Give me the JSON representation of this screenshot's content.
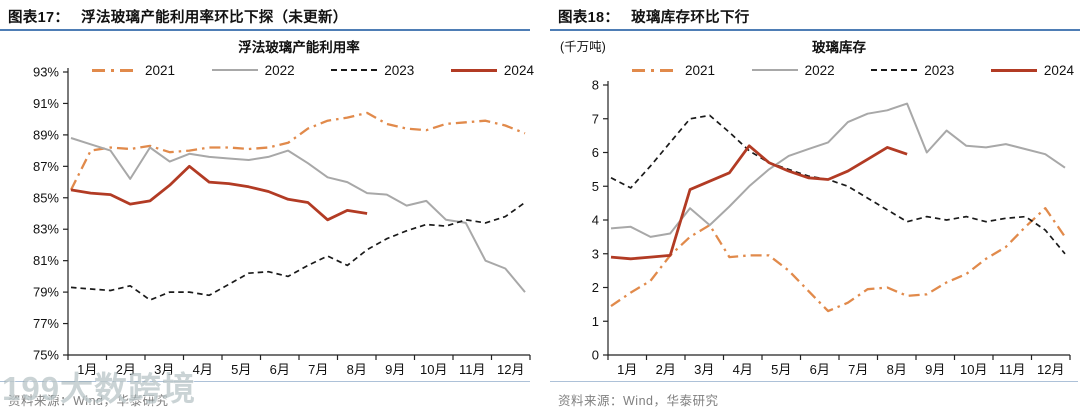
{
  "colors": {
    "y2021": "#E18A4B",
    "y2022": "#A8A8A8",
    "y2023": "#1A1A1A",
    "y2024": "#B23B24",
    "header_rule": "#4E7DB5",
    "footer_rule": "#ADC1D8",
    "source_text": "#808080",
    "axis": "#222222"
  },
  "figures": [
    {
      "label": "图表17：",
      "title": "浮法玻璃产能利用率环比下探（未更新）",
      "subtitle": "浮法玻璃产能利用率",
      "unit": "",
      "source": "资料来源：Wind，华泰研究"
    },
    {
      "label": "图表18：",
      "title": "玻璃库存环比下行",
      "subtitle": "玻璃库存",
      "unit": "(千万吨)",
      "source": "资料来源：Wind，华泰研究"
    }
  ],
  "watermark": {
    "text": "199大数跨境"
  },
  "chart_data": [
    {
      "type": "line",
      "title": "浮法玻璃产能利用率",
      "x_categories": [
        "1月",
        "2月",
        "3月",
        "4月",
        "5月",
        "6月",
        "7月",
        "8月",
        "9月",
        "10月",
        "11月",
        "12月"
      ],
      "points_per_month": 2,
      "ylim": [
        75,
        93
      ],
      "ytick_step": 2,
      "ytick_suffix": "%",
      "grid": false,
      "legend_position": "top",
      "series": [
        {
          "name": "2021",
          "style": "dashdot",
          "color": "#E18A4B",
          "width": 2.3,
          "values": [
            85.5,
            88.0,
            88.2,
            88.1,
            88.3,
            87.9,
            88.0,
            88.2,
            88.2,
            88.1,
            88.2,
            88.5,
            89.4,
            89.9,
            90.1,
            90.4,
            89.7,
            89.4,
            89.3,
            89.7,
            89.8,
            89.9,
            89.6,
            89.1
          ]
        },
        {
          "name": "2022",
          "style": "solid",
          "color": "#A8A8A8",
          "width": 2.0,
          "values": [
            88.8,
            88.4,
            88.0,
            86.2,
            88.2,
            87.3,
            87.8,
            87.6,
            87.5,
            87.4,
            87.6,
            88.0,
            87.2,
            86.3,
            86.0,
            85.3,
            85.2,
            84.5,
            84.8,
            83.6,
            83.4,
            81.0,
            80.5,
            79.0
          ]
        },
        {
          "name": "2023",
          "style": "dashed",
          "color": "#1A1A1A",
          "width": 1.7,
          "values": [
            79.3,
            79.2,
            79.1,
            79.4,
            78.5,
            79.0,
            79.0,
            78.8,
            79.5,
            80.2,
            80.3,
            80.0,
            80.7,
            81.3,
            80.7,
            81.7,
            82.4,
            82.9,
            83.3,
            83.2,
            83.6,
            83.4,
            83.8,
            84.7
          ]
        },
        {
          "name": "2024",
          "style": "solid",
          "color": "#B23B24",
          "width": 2.8,
          "values": [
            85.5,
            85.3,
            85.2,
            84.6,
            84.8,
            85.8,
            87.0,
            86.0,
            85.9,
            85.7,
            85.4,
            84.9,
            84.7,
            83.6,
            84.2,
            84.0
          ]
        }
      ]
    },
    {
      "type": "line",
      "title": "玻璃库存",
      "y_unit": "千万吨",
      "x_categories": [
        "1月",
        "2月",
        "3月",
        "4月",
        "5月",
        "6月",
        "7月",
        "8月",
        "9月",
        "10月",
        "11月",
        "12月"
      ],
      "points_per_month": 2,
      "ylim": [
        0,
        8
      ],
      "ytick_step": 1,
      "ytick_suffix": "",
      "grid": false,
      "legend_position": "top",
      "series": [
        {
          "name": "2021",
          "style": "dashdot",
          "color": "#E18A4B",
          "width": 2.3,
          "values": [
            1.45,
            1.85,
            2.2,
            2.95,
            3.5,
            3.85,
            2.9,
            2.95,
            2.95,
            2.5,
            1.9,
            1.3,
            1.55,
            1.95,
            2.0,
            1.75,
            1.8,
            2.15,
            2.4,
            2.85,
            3.2,
            3.8,
            4.35,
            3.5
          ]
        },
        {
          "name": "2022",
          "style": "solid",
          "color": "#A8A8A8",
          "width": 2.0,
          "values": [
            3.75,
            3.8,
            3.5,
            3.6,
            4.35,
            3.85,
            4.4,
            5.0,
            5.5,
            5.9,
            6.1,
            6.3,
            6.9,
            7.15,
            7.25,
            7.45,
            6.0,
            6.65,
            6.2,
            6.15,
            6.25,
            6.1,
            5.95,
            5.55
          ]
        },
        {
          "name": "2023",
          "style": "dashed",
          "color": "#1A1A1A",
          "width": 1.7,
          "values": [
            5.25,
            4.95,
            5.6,
            6.3,
            7.0,
            7.1,
            6.6,
            6.05,
            5.7,
            5.5,
            5.3,
            5.2,
            5.0,
            4.65,
            4.3,
            3.95,
            4.1,
            4.0,
            4.1,
            3.95,
            4.05,
            4.1,
            3.7,
            3.0
          ]
        },
        {
          "name": "2024",
          "style": "solid",
          "color": "#B23B24",
          "width": 2.8,
          "values": [
            2.9,
            2.85,
            2.9,
            2.95,
            4.9,
            5.15,
            5.4,
            6.2,
            5.7,
            5.45,
            5.25,
            5.2,
            5.45,
            5.8,
            6.15,
            5.95
          ]
        }
      ]
    }
  ]
}
